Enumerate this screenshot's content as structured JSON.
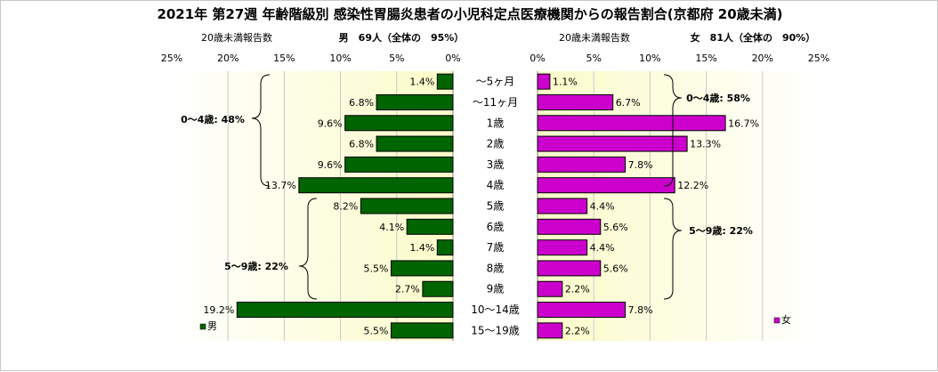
{
  "chart_data": {
    "type": "bar",
    "title": "2021年 第27週 年齢階級別 感染性胃腸炎患者の小児科定点医療機関からの報告割合(京都府 20歳未満)",
    "categories": [
      "～5ヶ月",
      "～11ヶ月",
      "1歳",
      "2歳",
      "3歳",
      "4歳",
      "5歳",
      "6歳",
      "7歳",
      "8歳",
      "9歳",
      "10～14歳",
      "15～19歳"
    ],
    "xlim": [
      0,
      25
    ],
    "x_ticks": [
      "25%",
      "20%",
      "15%",
      "10%",
      "5%",
      "0%"
    ],
    "x_ticks_right": [
      "0%",
      "5%",
      "10%",
      "15%",
      "20%",
      "25%"
    ],
    "grid": true,
    "male": {
      "axis_label": "20歳未満報告数",
      "header": "男　69人（全体の　95%）",
      "legend": "男",
      "color": "#006400",
      "values": [
        1.4,
        6.8,
        9.6,
        6.8,
        9.6,
        13.7,
        8.2,
        4.1,
        1.4,
        5.5,
        2.7,
        19.2,
        5.5
      ],
      "labels": [
        "1.4%",
        "6.8%",
        "9.6%",
        "6.8%",
        "9.6%",
        "13.7%",
        "8.2%",
        "4.1%",
        "1.4%",
        "5.5%",
        "2.7%",
        "19.2%",
        "5.5%"
      ],
      "bracket_0_4": "0～4歳: 48%",
      "bracket_5_9": "5～9歳: 22%"
    },
    "female": {
      "axis_label": "20歳未満報告数",
      "header": "女　81人（全体の　90%）",
      "legend": "女",
      "color": "#cc00cc",
      "values": [
        1.1,
        6.7,
        16.7,
        13.3,
        7.8,
        12.2,
        4.4,
        5.6,
        4.4,
        5.6,
        2.2,
        7.8,
        2.2
      ],
      "labels": [
        "1.1%",
        "6.7%",
        "16.7%",
        "13.3%",
        "7.8%",
        "12.2%",
        "4.4%",
        "5.6%",
        "4.4%",
        "5.6%",
        "2.2%",
        "7.8%",
        "2.2%"
      ],
      "bracket_0_4": "0～4歳: 58%",
      "bracket_5_9": "5～9歳: 22%"
    }
  }
}
